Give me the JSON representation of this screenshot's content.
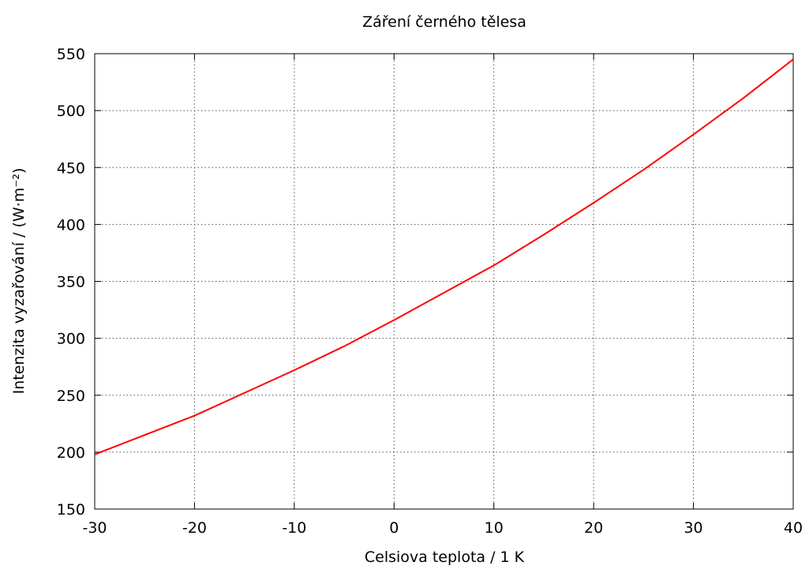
{
  "chart_data": {
    "type": "line",
    "title": "Záření černého tělesa",
    "xlabel": "Celsiova teplota / 1 K",
    "ylabel": "Intenzita vyzařování / (W·m⁻²)",
    "xlim": [
      -30,
      40
    ],
    "ylim": [
      150,
      550
    ],
    "xticks": [
      -30,
      -20,
      -10,
      0,
      10,
      20,
      30,
      40
    ],
    "yticks": [
      150,
      200,
      250,
      300,
      350,
      400,
      450,
      500,
      550
    ],
    "xtick_labels": [
      "-30",
      "-20",
      "-10",
      "0",
      "10",
      "20",
      "30",
      "40"
    ],
    "ytick_labels": [
      "150",
      "200",
      "250",
      "300",
      "350",
      "400",
      "450",
      "500",
      "550"
    ],
    "grid": true,
    "legend": "none",
    "series": [
      {
        "color": "#ff0000",
        "x": [
          -30,
          -25,
          -20,
          -15,
          -10,
          -5,
          0,
          5,
          10,
          15,
          20,
          25,
          30,
          35,
          40
        ],
        "y": [
          198,
          215,
          232,
          252,
          272,
          293,
          316,
          340,
          364,
          391,
          419,
          448,
          479,
          511,
          545
        ]
      }
    ]
  }
}
